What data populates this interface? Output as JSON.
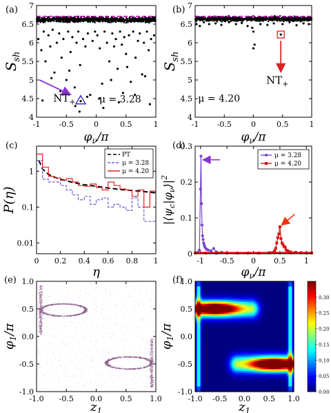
{
  "chart_data": [
    {
      "panel": "(a)",
      "type": "scatter",
      "xlabel": "φν/π",
      "ylabel": "Ssh",
      "xlim": [
        -1,
        1
      ],
      "ylim": [
        4,
        7
      ],
      "xticks": [
        "-1",
        "-0.5",
        "0",
        "0.5",
        "1"
      ],
      "yticks": [
        "4",
        "4.5",
        "5",
        "5.5",
        "6",
        "6.5",
        "7"
      ],
      "reference_line": {
        "y": 6.71,
        "color": "#cc00cc",
        "style": "dashed"
      },
      "band": {
        "y_center": 6.62,
        "half_width": 0.07
      },
      "scatter_x": [
        -0.97,
        -0.92,
        -0.88,
        -0.85,
        -0.8,
        -0.77,
        -0.73,
        -0.7,
        -0.66,
        -0.62,
        -0.58,
        -0.55,
        -0.5,
        -0.47,
        -0.43,
        -0.4,
        -0.36,
        -0.33,
        -0.3,
        -0.27,
        -0.22,
        -0.18,
        -0.14,
        -0.1,
        -0.06,
        -0.02,
        0.02,
        0.06,
        0.1,
        0.14,
        0.18,
        0.22,
        0.27,
        0.3,
        0.33,
        0.36,
        0.4,
        0.43,
        0.47,
        0.5,
        0.55,
        0.58,
        0.62,
        0.66,
        0.7,
        0.73,
        0.77,
        0.8,
        0.85,
        0.88,
        0.92,
        0.97,
        -0.9,
        -0.6,
        -0.35,
        -0.15,
        0.12,
        0.38,
        0.65,
        0.9,
        -0.75,
        -0.45,
        0.25,
        0.52,
        0.82,
        -0.28,
        0.05,
        0.45
      ],
      "scatter_y": [
        6.1,
        5.8,
        6.3,
        5.5,
        6.2,
        5.9,
        6.35,
        5.2,
        6.0,
        6.25,
        5.6,
        6.1,
        5.0,
        6.3,
        5.75,
        6.15,
        4.8,
        6.0,
        6.3,
        5.4,
        6.1,
        5.9,
        6.25,
        4.6,
        6.05,
        6.3,
        6.2,
        5.85,
        4.9,
        6.3,
        6.0,
        5.5,
        6.25,
        5.9,
        6.1,
        5.3,
        6.3,
        5.95,
        6.15,
        5.7,
        6.2,
        4.95,
        6.3,
        5.6,
        6.05,
        6.25,
        5.15,
        6.0,
        6.3,
        5.8,
        6.1,
        6.2,
        4.45,
        4.7,
        4.3,
        4.55,
        4.25,
        4.4,
        4.6,
        4.35,
        5.05,
        5.25,
        5.0,
        5.35,
        5.1,
        4.15,
        4.5,
        4.65
      ],
      "marker": {
        "x": -0.26,
        "y": 4.45,
        "shape": "triangle",
        "color": "#2222bb"
      },
      "annotation_arrow": {
        "from_x": -0.95,
        "from_y": 5.0,
        "to_x": -0.45,
        "to_y": 4.62,
        "color": "#8833cc"
      },
      "texts": {
        "label": "NT",
        "sub": "+",
        "mu": "μ = 3.28"
      }
    },
    {
      "panel": "(b)",
      "type": "scatter",
      "xlabel": "φν/π",
      "ylabel": "Ssh",
      "xlim": [
        -1,
        1
      ],
      "ylim": [
        4,
        7
      ],
      "xticks": [
        "-1",
        "-0.5",
        "0",
        "0.5",
        "1"
      ],
      "yticks": [
        "4",
        "4.5",
        "5",
        "5.5",
        "6",
        "6.5",
        "7"
      ],
      "reference_line": {
        "y": 6.71,
        "color": "#cc00cc",
        "style": "dashed"
      },
      "band": {
        "y_center": 6.64,
        "half_width": 0.06
      },
      "scatter_x": [
        -0.98,
        -0.92,
        -0.85,
        -0.76,
        -0.65,
        -0.55,
        -0.42,
        -0.3,
        -0.2,
        -0.1,
        0.0,
        0.0,
        0.12,
        0.24,
        0.35,
        0.5,
        0.62,
        0.74,
        0.86,
        0.95,
        -0.02,
        0.02
      ],
      "scatter_y": [
        6.5,
        6.45,
        6.55,
        6.5,
        6.52,
        6.48,
        6.55,
        6.5,
        6.53,
        6.45,
        6.3,
        5.85,
        6.5,
        6.48,
        6.52,
        6.5,
        6.55,
        6.47,
        6.52,
        6.5,
        6.4,
        5.95
      ],
      "marker": {
        "x": 0.47,
        "y": 6.22,
        "shape": "square",
        "color": "#dd2222"
      },
      "annotation_arrow": {
        "from_x": 0.47,
        "from_y": 6.05,
        "to_x": 0.47,
        "to_y": 5.25,
        "color": "#dd2222"
      },
      "texts": {
        "label": "NT",
        "sub": "+",
        "mu": "μ = 4.20"
      }
    },
    {
      "panel": "(c)",
      "type": "line",
      "xlabel": "η",
      "ylabel": "P(η)",
      "xlim": [
        0,
        1
      ],
      "ylim": [
        0.005,
        5
      ],
      "yscale": "log",
      "xticks": [
        "0",
        "0.2",
        "0.4",
        "0.6",
        "0.8",
        "1"
      ],
      "yticks": [
        "0.01",
        "0.1",
        "1"
      ],
      "legend": {
        "position": "top-right",
        "entries": [
          "PT",
          "μ = 3.28",
          "μ = 4.20"
        ]
      },
      "series": [
        {
          "name": "PT",
          "style": "dashed",
          "color": "#000000",
          "x": [
            0.02,
            0.05,
            0.1,
            0.15,
            0.2,
            0.3,
            0.4,
            0.5,
            0.6,
            0.7,
            0.8,
            0.9,
            1.0
          ],
          "y": [
            2.0,
            1.15,
            0.82,
            0.68,
            0.6,
            0.49,
            0.42,
            0.38,
            0.34,
            0.31,
            0.29,
            0.27,
            0.25
          ]
        },
        {
          "name": "μ = 3.28",
          "style": "step-dashed",
          "color": "#7755dd",
          "edges": [
            0,
            0.05,
            0.1,
            0.15,
            0.2,
            0.25,
            0.3,
            0.35,
            0.4,
            0.45,
            0.5,
            0.55,
            0.6,
            0.65,
            0.7,
            0.75,
            0.8,
            0.85,
            0.9,
            0.95,
            1.0
          ],
          "values": [
            2.0,
            0.6,
            0.5,
            0.5,
            0.4,
            0.3,
            0.22,
            0.16,
            0.2,
            0.12,
            0.16,
            0.18,
            0.1,
            0.12,
            0.1,
            0.08,
            0.18,
            0.1,
            0.04,
            0.04
          ]
        },
        {
          "name": "μ = 4.20",
          "style": "step",
          "color": "#dd2222",
          "edges": [
            0,
            0.05,
            0.1,
            0.15,
            0.2,
            0.25,
            0.3,
            0.35,
            0.4,
            0.45,
            0.5,
            0.55,
            0.6,
            0.65,
            0.7,
            0.75,
            0.8,
            0.85,
            0.9,
            0.95,
            1.0
          ],
          "values": [
            3.0,
            1.3,
            0.72,
            0.65,
            0.56,
            0.62,
            0.5,
            0.4,
            0.38,
            0.44,
            0.35,
            0.3,
            0.5,
            0.4,
            0.32,
            0.3,
            0.2,
            0.3,
            0.1,
            0.28
          ]
        }
      ]
    },
    {
      "panel": "(d)",
      "type": "line",
      "xlabel": "φν/π",
      "ylabel": "|⟨ψc|φν⟩|²",
      "xlim": [
        -1.1,
        1.1
      ],
      "ylim": [
        0,
        0.3
      ],
      "xticks": [
        "-1",
        "-0.5",
        "0",
        "0.5",
        "1"
      ],
      "yticks": [
        "0",
        "0.1",
        "0.2",
        "0.3"
      ],
      "legend": {
        "position": "top-right",
        "entries": [
          "μ = 3.28",
          "μ = 4.20"
        ]
      },
      "series": [
        {
          "name": "μ = 3.28",
          "color": "#7744cc",
          "x": [
            -1.1,
            -1.05,
            -1.02,
            -1.0,
            -0.99,
            -0.98,
            -0.97,
            -0.96,
            -0.95,
            -0.94,
            -0.93,
            -0.92,
            -0.9,
            -0.88,
            -0.85,
            -0.8,
            -0.75,
            -0.7,
            -0.6,
            -0.5,
            -0.3,
            -0.1,
            0.1,
            0.3,
            0.5,
            0.7,
            0.9,
            1.1
          ],
          "y": [
            0.002,
            0.004,
            0.01,
            0.18,
            0.272,
            0.14,
            0.08,
            0.05,
            0.04,
            0.03,
            0.025,
            0.02,
            0.015,
            0.012,
            0.01,
            0.008,
            0.015,
            0.005,
            0.004,
            0.003,
            0.002,
            0.002,
            0.002,
            0.002,
            0.002,
            0.002,
            0.002,
            0.002
          ]
        },
        {
          "name": "μ = 4.20",
          "color": "#dd1111",
          "x": [
            -1.1,
            -0.9,
            -0.7,
            -0.5,
            -0.3,
            -0.1,
            0.1,
            0.3,
            0.4,
            0.42,
            0.44,
            0.46,
            0.48,
            0.5,
            0.52,
            0.54,
            0.56,
            0.58,
            0.6,
            0.62,
            0.65,
            0.7,
            0.8,
            0.9,
            1.0,
            1.1
          ],
          "y": [
            0.002,
            0.002,
            0.002,
            0.002,
            0.002,
            0.002,
            0.002,
            0.003,
            0.008,
            0.015,
            0.03,
            0.045,
            0.055,
            0.075,
            0.042,
            0.03,
            0.025,
            0.02,
            0.018,
            0.01,
            0.008,
            0.005,
            0.004,
            0.003,
            0.002,
            0.002
          ]
        }
      ],
      "arrows": [
        {
          "from_x": -0.63,
          "from_y": 0.262,
          "to_x": -0.93,
          "to_y": 0.262,
          "color": "#8833cc"
        },
        {
          "from_x": 0.78,
          "from_y": 0.11,
          "to_x": 0.55,
          "to_y": 0.082,
          "color": "#ee3311"
        }
      ]
    },
    {
      "panel": "(e)",
      "type": "scatter",
      "xlabel": "z1",
      "ylabel": "φ1/π",
      "xlim": [
        -1,
        1
      ],
      "ylim": [
        -1,
        1
      ],
      "xticks": [
        "-1.0",
        "-0.5",
        "0.0",
        "0.5",
        "1.0"
      ],
      "yticks": [
        "-1.0",
        "-0.5",
        "0.0",
        "0.5",
        "1.0"
      ],
      "orbits": [
        {
          "cx": -0.55,
          "cy": 0.48,
          "rx": 0.38,
          "ry": 0.11
        },
        {
          "cx": 0.55,
          "cy": -0.48,
          "rx": 0.38,
          "ry": 0.11
        }
      ],
      "color": "#8a5a8a"
    },
    {
      "panel": "(f)",
      "type": "heatmap",
      "xlabel": "z1",
      "ylabel": "φ1/π",
      "xlim": [
        -1,
        1
      ],
      "ylim": [
        -1,
        1
      ],
      "xticks": [
        "-1.0",
        "-0.5",
        "0.0",
        "0.5",
        "1.0"
      ],
      "yticks": [
        "-1.0",
        "-0.5",
        "0.0",
        "0.5",
        "1.0"
      ],
      "colorbar": {
        "min": 0.0,
        "max": 0.35,
        "ticks": [
          "0.00",
          "0.05",
          "0.10",
          "0.15",
          "0.20",
          "0.25",
          "0.30"
        ]
      },
      "peaks": [
        {
          "z": -0.6,
          "phi": 0.5,
          "value": 0.34
        },
        {
          "z": 0.6,
          "phi": -0.5,
          "value": 0.34
        }
      ]
    }
  ]
}
